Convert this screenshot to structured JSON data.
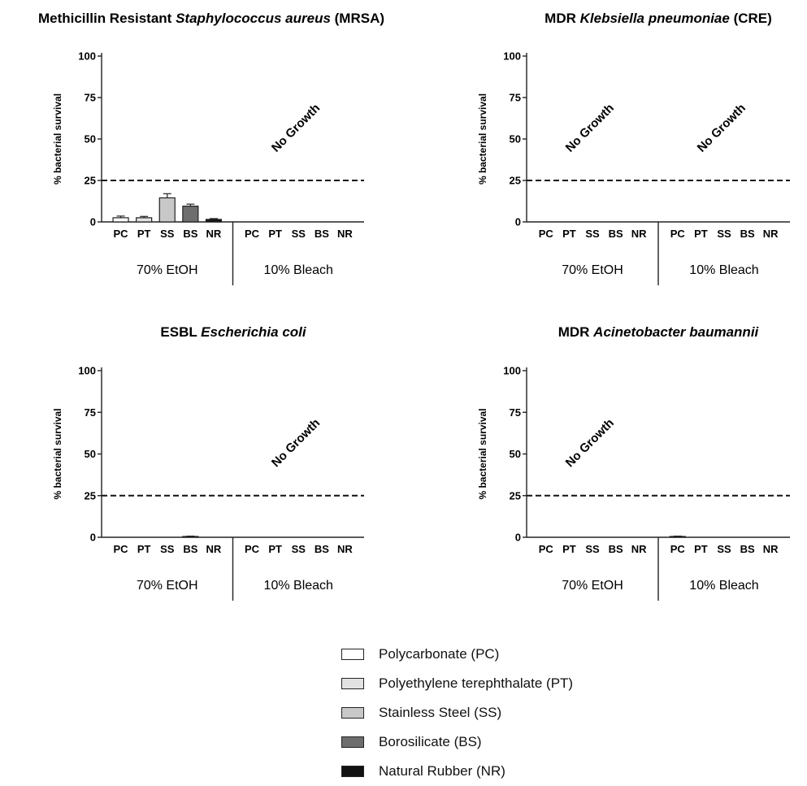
{
  "colors": {
    "PC": "#ffffff",
    "PT": "#e2e2e2",
    "SS": "#c8c8c8",
    "BS": "#6e6e6e",
    "NR": "#111111"
  },
  "legend": [
    {
      "key": "PC",
      "label": "Polycarbonate (PC)"
    },
    {
      "key": "PT",
      "label": "Polyethylene terephthalate (PT)"
    },
    {
      "key": "SS",
      "label": "Stainless Steel (SS)"
    },
    {
      "key": "BS",
      "label": "Borosilicate (BS)"
    },
    {
      "key": "NR",
      "label": "Natural Rubber (NR)"
    }
  ],
  "chart_data": [
    {
      "type": "bar",
      "title_parts": [
        {
          "text": "Methicillin Resistant ",
          "italic": false
        },
        {
          "text": "Staphylococcus aureus",
          "italic": true
        },
        {
          "text": " (MRSA)",
          "italic": false
        }
      ],
      "ylabel": "% bacterial survival",
      "ylim": [
        0,
        100
      ],
      "yticks": [
        "0",
        "25",
        "50",
        "75",
        "100"
      ],
      "reference_line": 25,
      "categories": [
        "PC",
        "PT",
        "SS",
        "BS",
        "NR"
      ],
      "groups": [
        {
          "label": "70% EtOH",
          "values": [
            2.5,
            2.5,
            14.5,
            9.5,
            1.5
          ],
          "errors": [
            1.0,
            0.8,
            2.5,
            1.2,
            0.5
          ],
          "no_growth": false
        },
        {
          "label": "10% Bleach",
          "values": [
            0,
            0,
            0,
            0,
            0
          ],
          "errors": [
            0,
            0,
            0,
            0,
            0
          ],
          "no_growth": true,
          "no_growth_text": "No Growth"
        }
      ]
    },
    {
      "type": "bar",
      "title_parts": [
        {
          "text": "MDR ",
          "italic": false
        },
        {
          "text": "Klebsiella pneumoniae",
          "italic": true
        },
        {
          "text": " (CRE)",
          "italic": false
        }
      ],
      "ylabel": "% bacterial survival",
      "ylim": [
        0,
        100
      ],
      "yticks": [
        "0",
        "25",
        "50",
        "75",
        "100"
      ],
      "reference_line": 25,
      "categories": [
        "PC",
        "PT",
        "SS",
        "BS",
        "NR"
      ],
      "groups": [
        {
          "label": "70% EtOH",
          "values": [
            0,
            0,
            0,
            0,
            0
          ],
          "errors": [
            0,
            0,
            0,
            0,
            0
          ],
          "no_growth": true,
          "no_growth_text": "No Growth"
        },
        {
          "label": "10% Bleach",
          "values": [
            0,
            0,
            0,
            0,
            0
          ],
          "errors": [
            0,
            0,
            0,
            0,
            0
          ],
          "no_growth": true,
          "no_growth_text": "No Growth"
        }
      ]
    },
    {
      "type": "bar",
      "title_parts": [
        {
          "text": "ESBL ",
          "italic": false
        },
        {
          "text": "Escherichia coli",
          "italic": true
        }
      ],
      "ylabel": "% bacterial survival",
      "ylim": [
        0,
        100
      ],
      "yticks": [
        "0",
        "25",
        "50",
        "75",
        "100"
      ],
      "reference_line": 25,
      "categories": [
        "PC",
        "PT",
        "SS",
        "BS",
        "NR"
      ],
      "groups": [
        {
          "label": "70% EtOH",
          "values": [
            0,
            0,
            0,
            0.5,
            0
          ],
          "errors": [
            0,
            0,
            0,
            0.2,
            0
          ],
          "no_growth": false
        },
        {
          "label": "10% Bleach",
          "values": [
            0,
            0,
            0,
            0,
            0
          ],
          "errors": [
            0,
            0,
            0,
            0,
            0
          ],
          "no_growth": true,
          "no_growth_text": "No Growth"
        }
      ]
    },
    {
      "type": "bar",
      "title_parts": [
        {
          "text": "MDR ",
          "italic": false
        },
        {
          "text": "Acinetobacter baumannii",
          "italic": true
        }
      ],
      "ylabel": "% bacterial survival",
      "ylim": [
        0,
        100
      ],
      "yticks": [
        "0",
        "25",
        "50",
        "75",
        "100"
      ],
      "reference_line": 25,
      "categories": [
        "PC",
        "PT",
        "SS",
        "BS",
        "NR"
      ],
      "groups": [
        {
          "label": "70% EtOH",
          "values": [
            0,
            0,
            0,
            0,
            0
          ],
          "errors": [
            0,
            0,
            0,
            0,
            0
          ],
          "no_growth": true,
          "no_growth_text": "No Growth"
        },
        {
          "label": "10% Bleach",
          "values": [
            0.5,
            0,
            0,
            0,
            0
          ],
          "errors": [
            0.2,
            0,
            0,
            0,
            0
          ],
          "no_growth": false
        }
      ]
    }
  ]
}
